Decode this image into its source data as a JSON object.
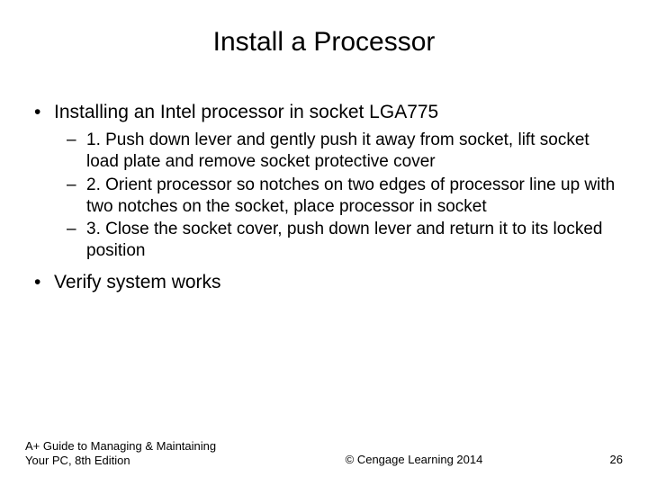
{
  "title": "Install a Processor",
  "bullets": {
    "b1": "Installing an Intel processor in socket LGA775",
    "sub1": "1. Push down lever and gently push it away from socket, lift socket load plate and remove socket protective cover",
    "sub2": "2. Orient processor so notches on two edges of processor line up with two notches on the socket, place processor in socket",
    "sub3": "3. Close the socket cover, push down lever and return it to its locked position",
    "b2": "Verify system works"
  },
  "footer": {
    "left": "A+ Guide to Managing & Maintaining Your PC, 8th Edition",
    "center": "© Cengage Learning  2014",
    "page": "26"
  }
}
